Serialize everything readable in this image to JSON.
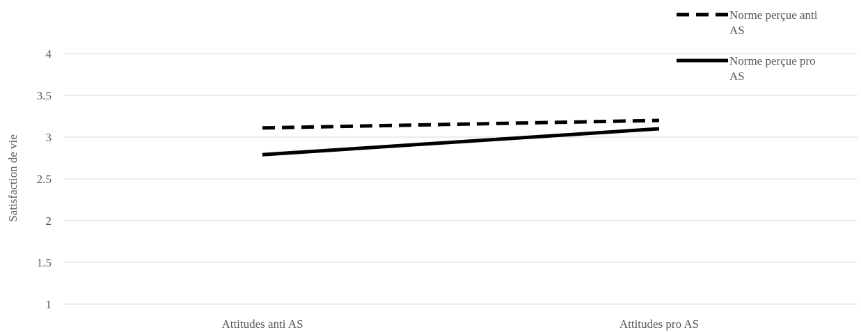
{
  "chart_data": {
    "type": "line",
    "categories": [
      "Attitudes anti AS",
      "Attitudes pro AS"
    ],
    "series": [
      {
        "name": "Norme perçue anti AS",
        "values": [
          3.11,
          3.2
        ],
        "style": "dashed",
        "color": "#000000"
      },
      {
        "name": "Norme perçue pro AS",
        "values": [
          2.79,
          3.1
        ],
        "style": "solid",
        "color": "#000000"
      }
    ],
    "title": "",
    "xlabel": "",
    "ylabel": "Satisfaction de vie",
    "ylim": [
      1,
      4
    ],
    "yticks": [
      "1",
      "1.5",
      "2",
      "2.5",
      "3",
      "3.5",
      "4"
    ],
    "grid": true,
    "legend_position": "top-right",
    "legend_lines": [
      [
        "Norme perçue anti",
        "AS"
      ],
      [
        "Norme perçue pro",
        "AS"
      ]
    ]
  }
}
